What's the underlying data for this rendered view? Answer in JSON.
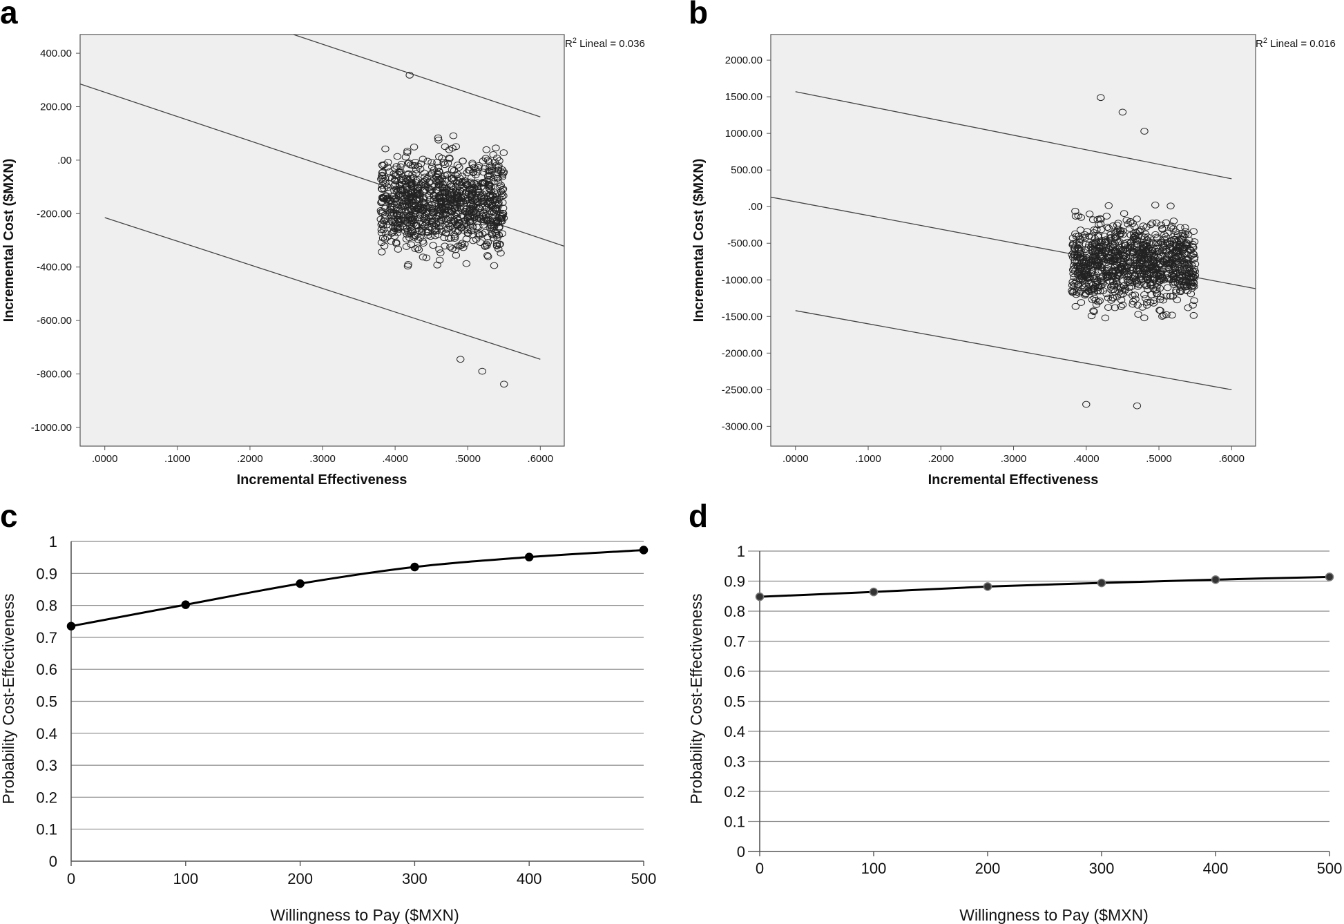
{
  "chart_data": [
    {
      "panel": "a",
      "type": "scatter",
      "title": "",
      "xlabel": "Incremental Effectiveness",
      "ylabel": "Incremental Cost ($MXN)",
      "xlim": [
        -0.034,
        0.633
      ],
      "ylim": [
        -1070,
        470
      ],
      "x_ticks": [
        0,
        0.1,
        0.2,
        0.3,
        0.4,
        0.5,
        0.6
      ],
      "x_tick_labels": [
        ".0000",
        ".1000",
        ".2000",
        ".3000",
        ".4000",
        ".5000",
        ".6000"
      ],
      "y_ticks": [
        400,
        200,
        0,
        -200,
        -400,
        -600,
        -800,
        -1000
      ],
      "y_tick_labels": [
        "400.00",
        "200.00",
        ".00",
        "-200.00",
        "-400.00",
        "-600.00",
        "-800.00",
        "-1000.00"
      ],
      "annotation": "R² Lineal = 0.036",
      "fit_lines": [
        {
          "name": "upper",
          "points": [
            [
              0.26,
              470
            ],
            [
              0.6,
              162
            ]
          ]
        },
        {
          "name": "fit",
          "points": [
            [
              -0.034,
              285
            ],
            [
              0.633,
              -322
            ]
          ]
        },
        {
          "name": "lower",
          "points": [
            [
              0.0,
              -215
            ],
            [
              0.6,
              -745
            ]
          ]
        }
      ],
      "scatter": {
        "n": 1000,
        "x_range": [
          0.38,
          0.55
        ],
        "y_center": -160,
        "y_spread": 560,
        "outliers": [
          [
            0.42,
            318
          ],
          [
            0.55,
            -838
          ],
          [
            0.49,
            -745
          ],
          [
            0.52,
            -790
          ]
        ]
      }
    },
    {
      "panel": "b",
      "type": "scatter",
      "title": "",
      "xlabel": "Incremental Effectiveness",
      "ylabel": "Incremental Cost ($MXN)",
      "xlim": [
        -0.034,
        0.633
      ],
      "ylim": [
        -3270,
        2350
      ],
      "x_ticks": [
        0,
        0.1,
        0.2,
        0.3,
        0.4,
        0.5,
        0.6
      ],
      "x_tick_labels": [
        ".0000",
        ".1000",
        ".2000",
        ".3000",
        ".4000",
        ".5000",
        ".6000"
      ],
      "y_ticks": [
        2000,
        1500,
        1000,
        500,
        0,
        -500,
        -1000,
        -1500,
        -2000,
        -2500,
        -3000
      ],
      "y_tick_labels": [
        "2000.00",
        "1500.00",
        "1000.00",
        "500.00",
        ".00",
        "-500.00",
        "-1000.00",
        "-1500.00",
        "-2000.00",
        "-2500.00",
        "-3000.00"
      ],
      "annotation": "R² Lineal = 0.016",
      "fit_lines": [
        {
          "name": "upper",
          "points": [
            [
              0.0,
              1570
            ],
            [
              0.6,
              380
            ]
          ]
        },
        {
          "name": "fit",
          "points": [
            [
              -0.034,
              130
            ],
            [
              0.633,
              -1120
            ]
          ]
        },
        {
          "name": "lower",
          "points": [
            [
              0.0,
              -1420
            ],
            [
              0.6,
              -2500
            ]
          ]
        }
      ],
      "scatter": {
        "n": 1000,
        "x_range": [
          0.38,
          0.55
        ],
        "y_center": -780,
        "y_spread": 1750,
        "outliers": [
          [
            0.42,
            1490
          ],
          [
            0.45,
            1290
          ],
          [
            0.4,
            -2700
          ],
          [
            0.47,
            -2720
          ],
          [
            0.48,
            1030
          ]
        ]
      }
    },
    {
      "panel": "c",
      "type": "line",
      "title": "",
      "xlabel": "Willingness to Pay ($MXN)",
      "ylabel": "Probability Cost-Effectiveness",
      "x": [
        0,
        100,
        200,
        300,
        400,
        500
      ],
      "values": [
        0.735,
        0.802,
        0.868,
        0.92,
        0.951,
        0.973
      ],
      "x_tick_labels": [
        "0",
        "100",
        "200",
        "300",
        "400",
        "500"
      ],
      "y_tick_labels": [
        "0",
        "0.1",
        "0.2",
        "0.3",
        "0.4",
        "0.5",
        "0.6",
        "0.7",
        "0.8",
        "0.9",
        "1"
      ],
      "xlim": [
        0,
        500
      ],
      "ylim": [
        0,
        1
      ],
      "grid": true
    },
    {
      "panel": "d",
      "type": "line",
      "title": "",
      "xlabel": "Willingness to Pay ($MXN)",
      "ylabel": "Probability Cost-Effectiveness",
      "x": [
        0,
        100,
        200,
        300,
        400,
        500
      ],
      "values": [
        0.848,
        0.864,
        0.882,
        0.894,
        0.905,
        0.914
      ],
      "x_tick_labels": [
        "0",
        "100",
        "200",
        "300",
        "400",
        "500"
      ],
      "y_tick_labels": [
        "0",
        "0.1",
        "0.2",
        "0.3",
        "0.4",
        "0.5",
        "0.6",
        "0.7",
        "0.8",
        "0.9",
        "1"
      ],
      "xlim": [
        0,
        500
      ],
      "ylim": [
        0,
        1
      ],
      "grid": true
    }
  ]
}
